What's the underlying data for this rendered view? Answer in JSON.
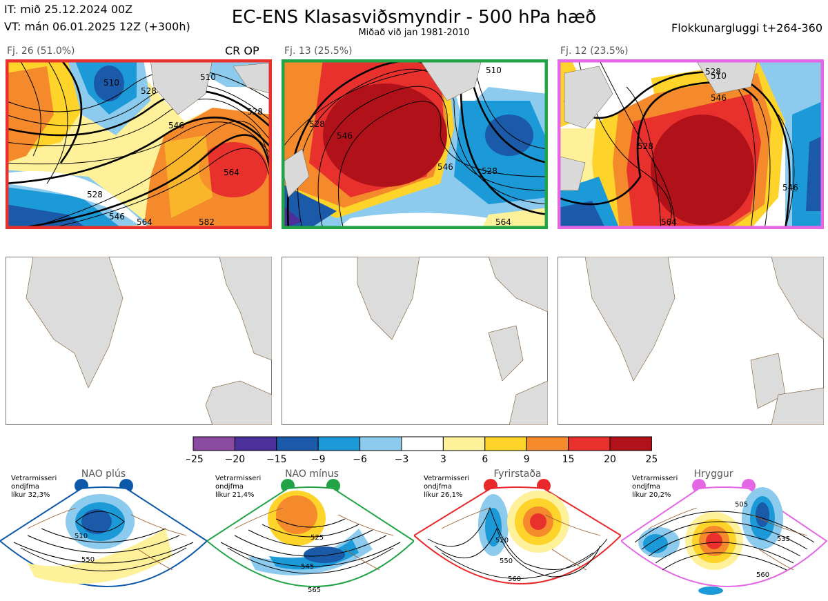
{
  "header": {
    "it_line": "IT: mið 25.12.2024 00Z",
    "vt_line": "VT: mán 06.01.2025 12Z  (+300h)",
    "title": "EC-ENS Klasasviðsmyndir - 500 hPa hæð",
    "subtitle": "Miðað við jan 1981-2010",
    "cluster_window": "Flokkunargluggi t+264-360"
  },
  "clusters": [
    {
      "label": "Fj. 26 (51.0%)",
      "tag": "CR OP",
      "frame_color": "#e8302d",
      "contours": [
        "510",
        "528",
        "546",
        "564",
        "528",
        "546",
        "564",
        "510",
        "528",
        "582"
      ]
    },
    {
      "label": "Fj. 13 (25.5%)",
      "tag": "",
      "frame_color": "#21a346",
      "contours": [
        "528",
        "546",
        "546",
        "528",
        "510",
        "564"
      ]
    },
    {
      "label": "Fj. 12 (23.5%)",
      "tag": "",
      "frame_color": "#e467e6",
      "contours": [
        "510",
        "528",
        "546",
        "528",
        "564",
        "546"
      ]
    }
  ],
  "colorbar": {
    "ticks": [
      "−25",
      "−20",
      "−15",
      "−9",
      "−6",
      "−3",
      "3",
      "6",
      "9",
      "15",
      "20",
      "25"
    ],
    "colors": [
      "#8a4aa0",
      "#4b2f9a",
      "#1a5aa8",
      "#1c9ad8",
      "#8ccbee",
      "#ffffff",
      "#fff19a",
      "#fed42a",
      "#f58a2c",
      "#e8302d",
      "#b1121a"
    ]
  },
  "regimes": [
    {
      "name": "NAO plús",
      "note1": "Vetrarmisseri",
      "note2": "ondjfma",
      "note3": "líkur 32,3%",
      "color": "#0d58a8",
      "contours": [
        "510",
        "550"
      ]
    },
    {
      "name": "NAO mínus",
      "note1": "Vetrarmisseri",
      "note2": "ondjfma",
      "note3": "líkur 21,4%",
      "color": "#21a346",
      "contours": [
        "525",
        "545",
        "565"
      ]
    },
    {
      "name": "Fyrirstaða",
      "note1": "Vetrarmisseri",
      "note2": "ondjfma",
      "note3": "líkur 26,1%",
      "color": "#e8282a",
      "contours": [
        "520",
        "550",
        "560"
      ]
    },
    {
      "name": "Hryggur",
      "note1": "Vetrarmisseri",
      "note2": "ondjfma",
      "note3": "líkur 20,2%",
      "color": "#e467e6",
      "contours": [
        "505",
        "535",
        "560"
      ]
    }
  ]
}
